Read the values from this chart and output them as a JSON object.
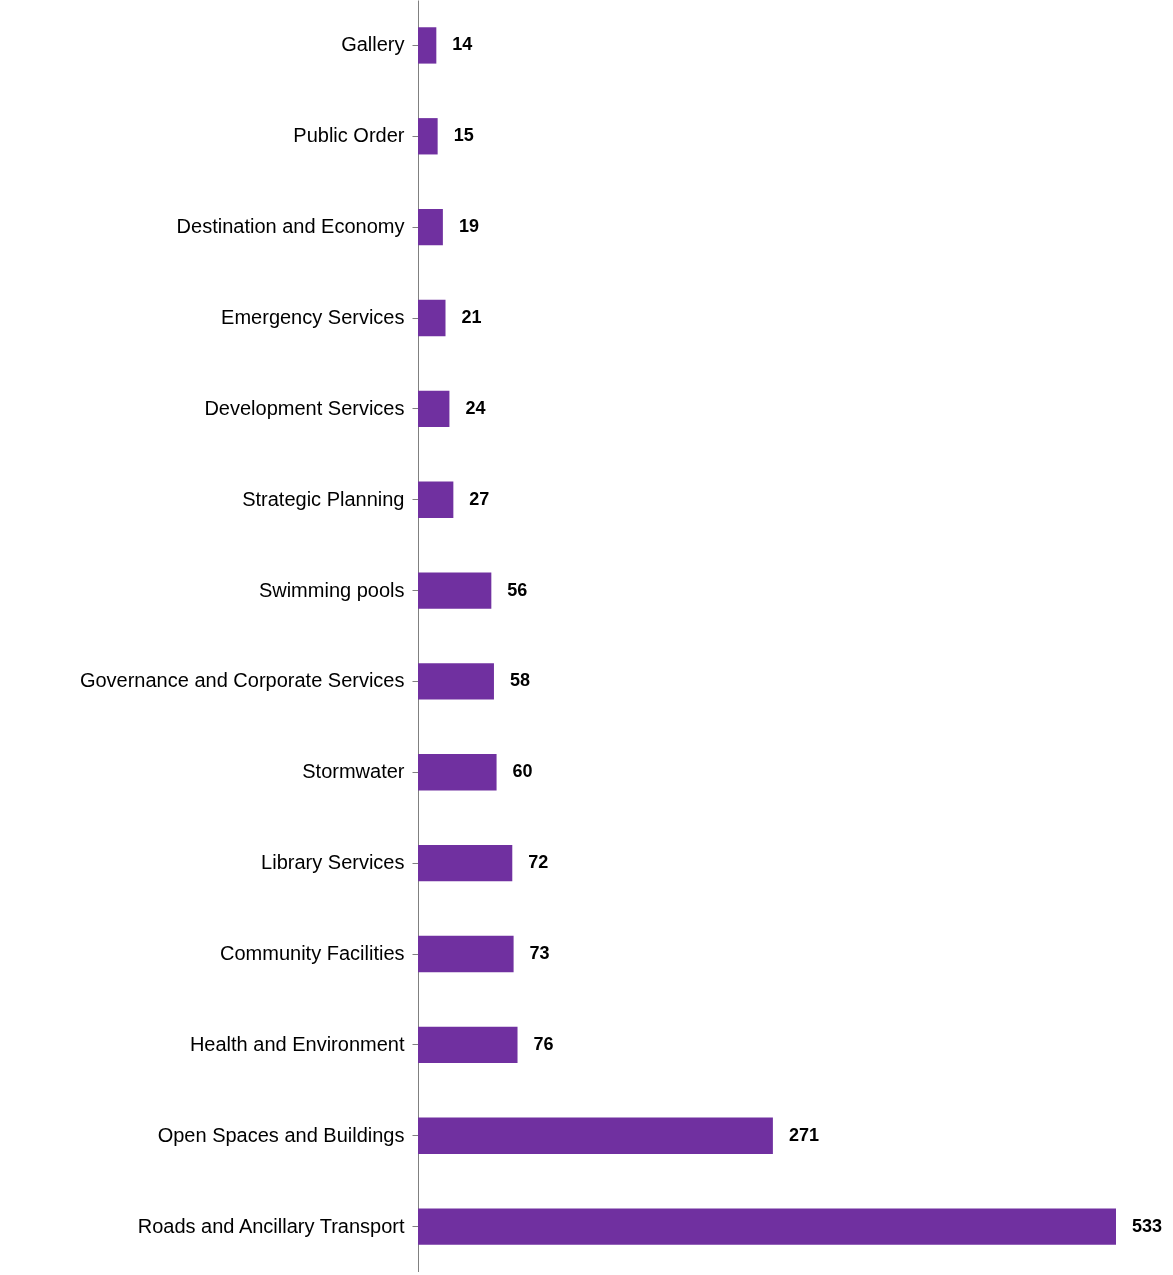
{
  "chart_data": {
    "type": "bar",
    "orientation": "horizontal",
    "categories": [
      "Gallery",
      "Public Order",
      "Destination and Economy",
      "Emergency Services",
      "Development Services",
      "Strategic Planning",
      "Swimming pools",
      "Governance and Corporate Services",
      "Stormwater",
      "Library Services",
      "Community Facilities",
      "Health and Environment",
      "Open Spaces and Buildings",
      "Roads and Ancillary Transport"
    ],
    "values": [
      14,
      15,
      19,
      21,
      24,
      27,
      56,
      58,
      60,
      72,
      73,
      76,
      271,
      533
    ],
    "color": "#7030a0",
    "data_labels": true
  }
}
